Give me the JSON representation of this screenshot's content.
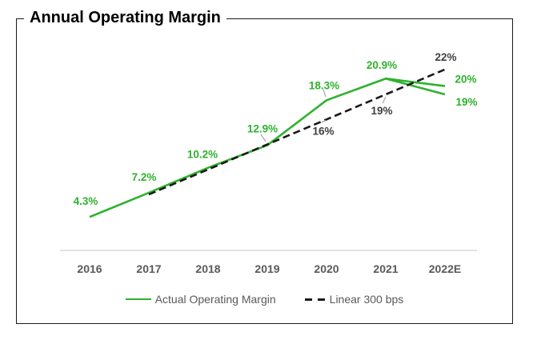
{
  "title": "Annual Operating Margin",
  "legend": {
    "position": "bottom",
    "items": [
      {
        "label": "Actual Operating Margin",
        "color": "#2eb22e",
        "style": "solid"
      },
      {
        "label": "Linear 300 bps",
        "color": "#1a1a1a",
        "style": "dashed"
      }
    ]
  },
  "chart_data": {
    "type": "line",
    "title": "Annual Operating Margin",
    "categories": [
      "2016",
      "2017",
      "2018",
      "2019",
      "2020",
      "2021",
      "2022E"
    ],
    "series": [
      {
        "name": "Actual Operating Margin",
        "color": "#2eb22e",
        "label_color": "#2eb22e",
        "dash": false,
        "values": [
          4.3,
          7.2,
          10.2,
          12.9,
          18.3,
          20.9,
          20.0
        ],
        "point_labels": [
          "4.3%",
          "7.2%",
          "10.2%",
          "12.9%",
          "18.3%",
          "20.9%",
          "20%"
        ]
      },
      {
        "name": "Actual Operating Margin (2022E lower branch)",
        "color": "#2eb22e",
        "label_color": "#2eb22e",
        "dash": false,
        "values": [
          null,
          null,
          null,
          null,
          null,
          20.9,
          19.0
        ],
        "point_labels": [
          null,
          null,
          null,
          null,
          null,
          null,
          "19%"
        ]
      },
      {
        "name": "Linear 300 bps",
        "color": "#1a1a1a",
        "label_color": "#3f3f3f",
        "dash": true,
        "values": [
          null,
          7.0,
          10.0,
          13.0,
          16.0,
          19.0,
          22.0
        ],
        "point_labels": [
          null,
          null,
          null,
          null,
          "16%",
          "19%",
          "22%"
        ]
      }
    ],
    "ylim": [
      0,
      26
    ],
    "grid": false,
    "y_axis_visible": false,
    "legend_position": "bottom"
  },
  "colors": {
    "accent_green": "#2eb22e",
    "dashed_black": "#1a1a1a",
    "axis_text": "#595959",
    "black_label_text": "#3f3f3f",
    "axis_line": "#d9d9d9",
    "leader_line": "#a6a6a6",
    "frame_border": "#1a1a1a"
  }
}
